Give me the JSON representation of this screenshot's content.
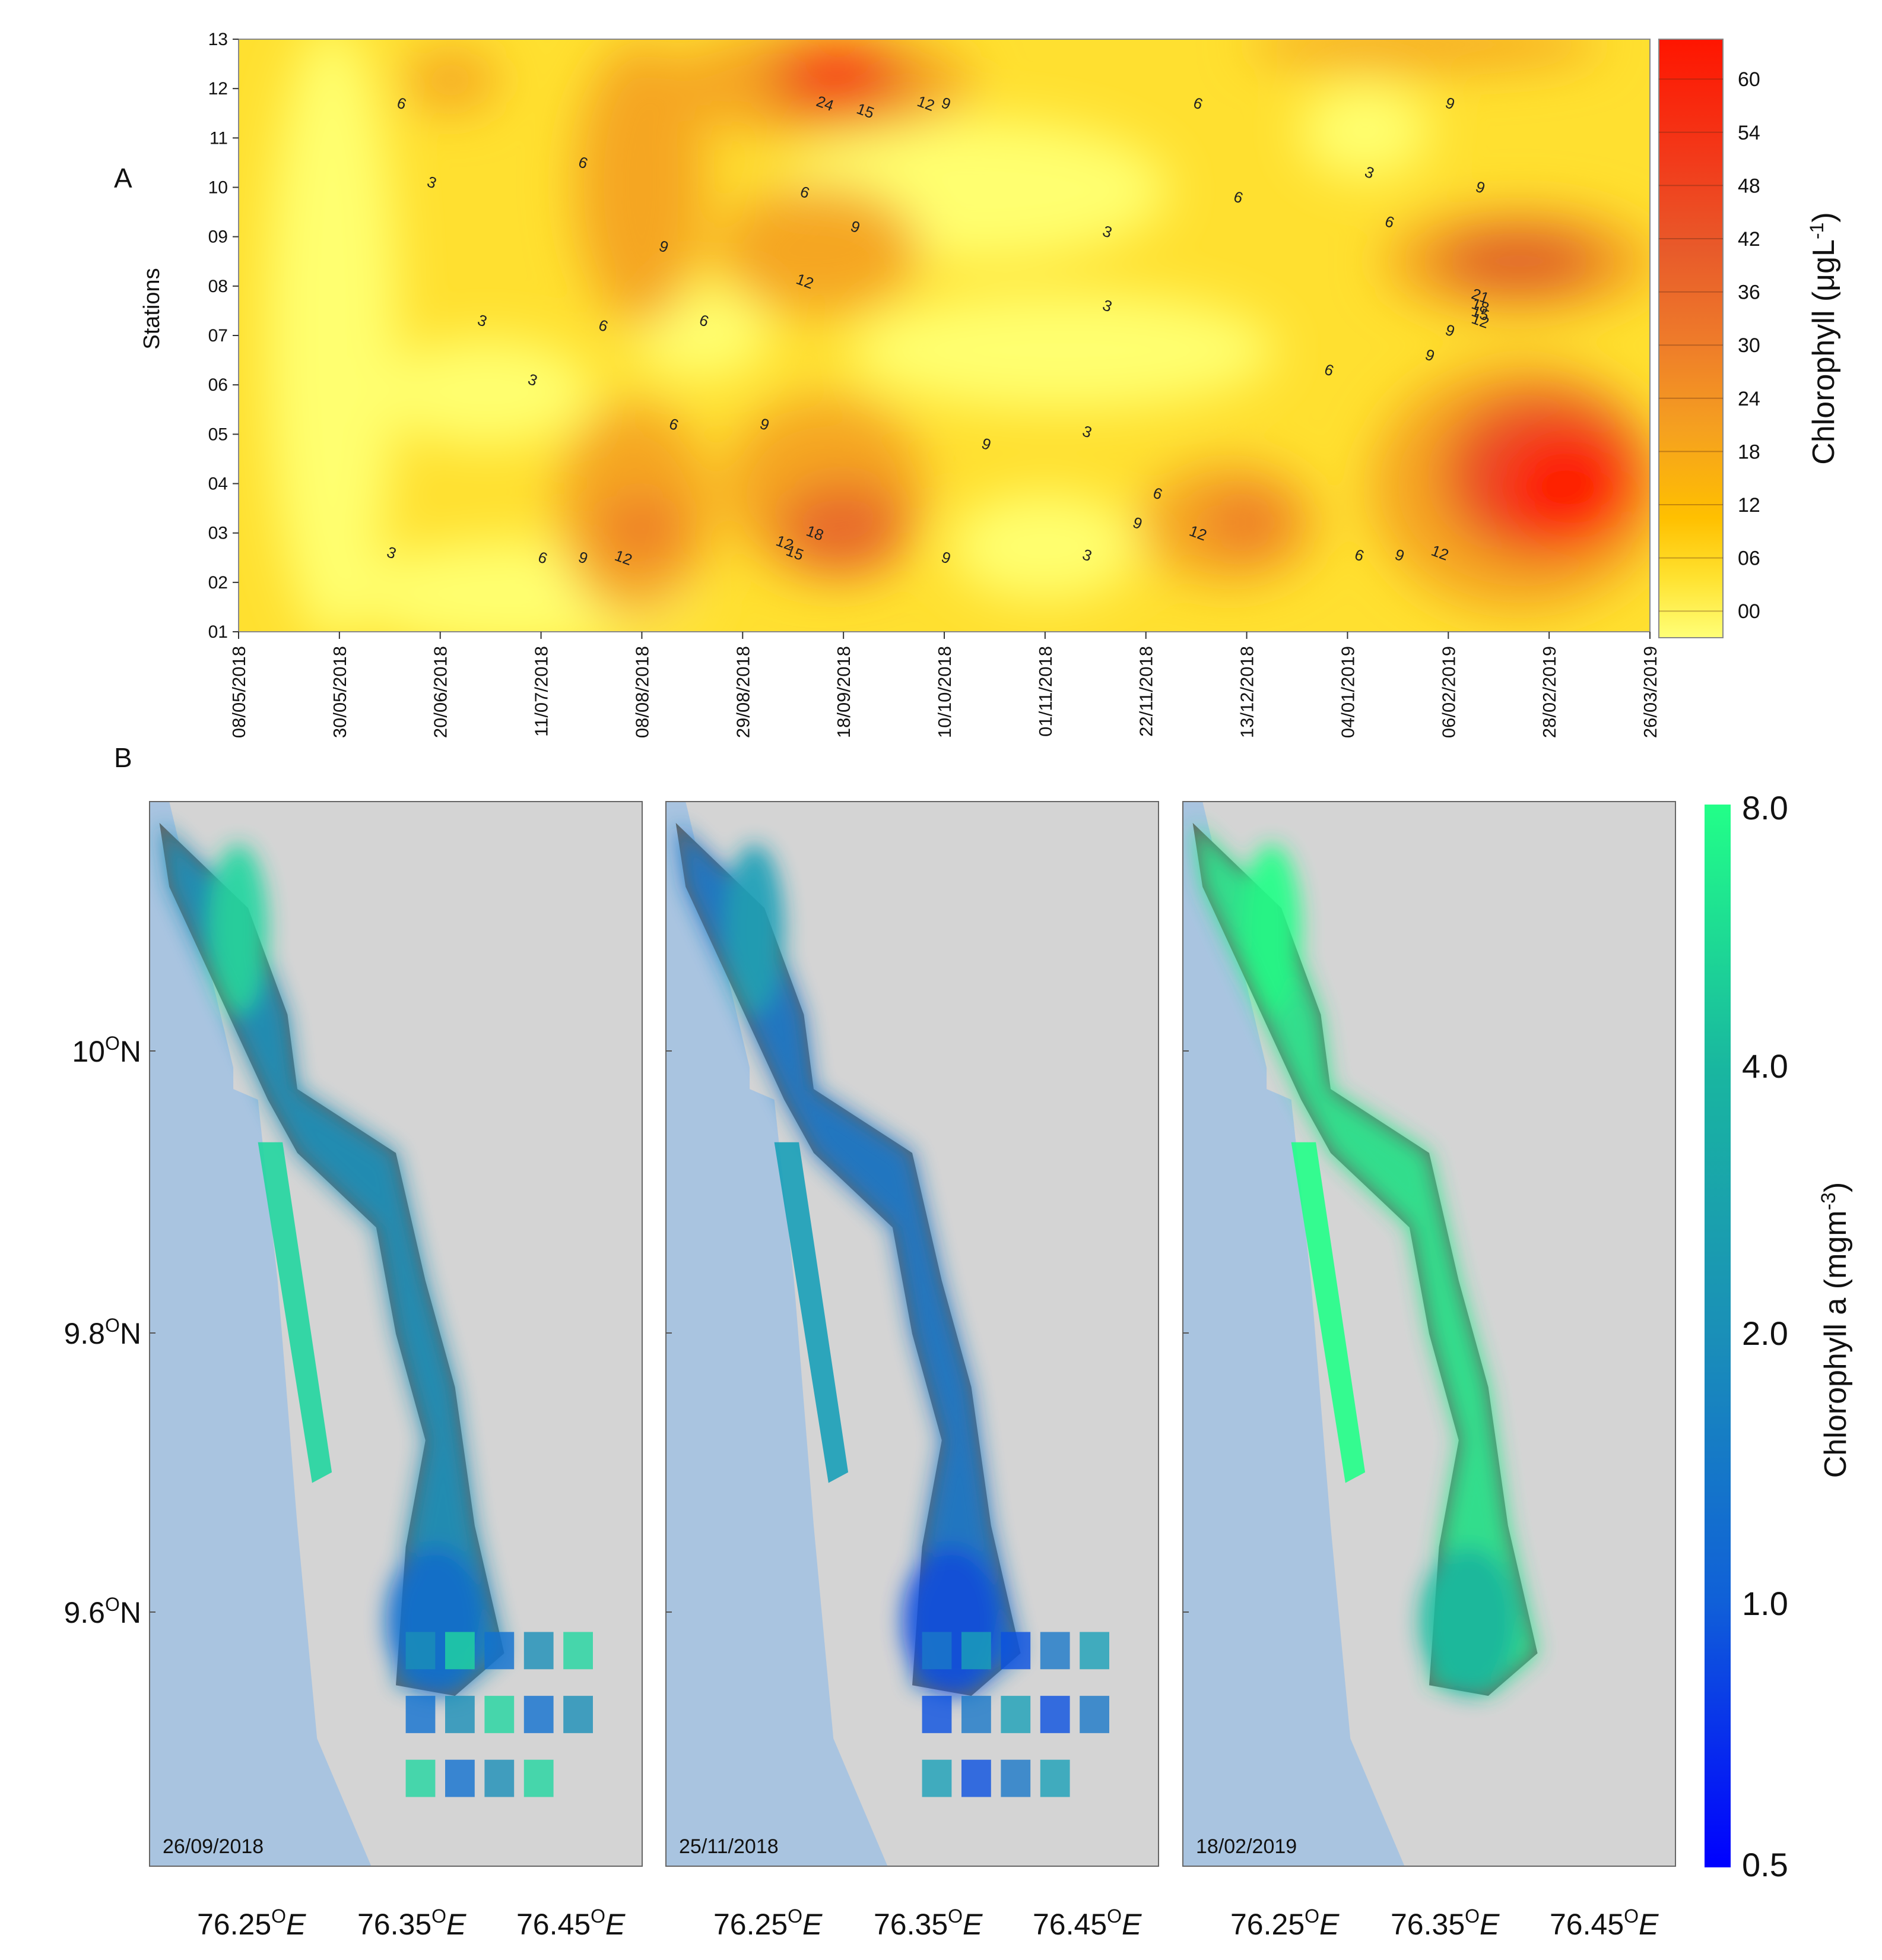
{
  "panel_a": {
    "letter": "A",
    "ylabel": "Stations",
    "colorbar_title": "Chlorophyll (μgL",
    "colorbar_sup": "-1",
    "colorbar_close": ")",
    "colorbar_ticks": [
      "00",
      "06",
      "12",
      "18",
      "24",
      "30",
      "36",
      "42",
      "48",
      "54",
      "60"
    ]
  },
  "panel_b": {
    "letter": "B",
    "colorbar_title": "Chlorophyll a (mgm",
    "colorbar_sup": "-3",
    "colorbar_close": ")",
    "colorbar_ticks": [
      "0.5",
      "1.0",
      "2.0",
      "4.0",
      "8.0"
    ],
    "lat_ticks": [
      "10",
      "9.8",
      "9.6"
    ],
    "lat_suffix": "N",
    "lon_ticks": [
      "76.25",
      "76.35",
      "76.45"
    ],
    "lon_suffix": "E",
    "degree_mark": "O",
    "maps": [
      {
        "date": "26/09/2018"
      },
      {
        "date": "25/11/2018"
      },
      {
        "date": "18/02/2019"
      }
    ]
  },
  "colors": {
    "low": "#ffff66",
    "mid": "#ffd200",
    "orange": "#f5a623",
    "high": "#ff1a00",
    "sea": "#a9c4e0",
    "land": "#d4d4d4",
    "water_gray": "#666666",
    "chl_low": "#0000ff",
    "chl_mid": "#1e88b4",
    "chl_high": "#22ff88"
  },
  "chart_data": {
    "type": "heatmap",
    "title": "",
    "xlabel": "",
    "ylabel": "Stations",
    "x_ticks": [
      "08/05/2018",
      "30/05/2018",
      "20/06/2018",
      "11/07/2018",
      "08/08/2018",
      "29/08/2018",
      "18/09/2018",
      "10/10/2018",
      "01/11/2018",
      "22/11/2018",
      "13/12/2018",
      "04/01/2019",
      "06/02/2019",
      "28/02/2019",
      "26/03/2019"
    ],
    "y_ticks": [
      "01",
      "02",
      "03",
      "04",
      "05",
      "06",
      "07",
      "08",
      "09",
      "10",
      "11",
      "12",
      "13"
    ],
    "colorbar": {
      "label": "Chlorophyll (μgL-1)",
      "range": [
        0,
        60
      ],
      "ticks": [
        0,
        6,
        12,
        18,
        24,
        30,
        36,
        42,
        48,
        54,
        60
      ]
    },
    "hotspots": [
      {
        "x": "18/09/2018",
        "station": 12,
        "value": 60
      },
      {
        "x": "28/02/2019",
        "station": 4,
        "value": 60
      },
      {
        "x": "18/09/2018",
        "station": 3,
        "value": 30
      },
      {
        "x": "06/02/2019",
        "station": 8,
        "value": 27
      },
      {
        "x": "08/08/2018",
        "station": 3,
        "value": 20
      },
      {
        "x": "13/12/2018",
        "station": 3,
        "value": 20
      }
    ],
    "contour_labels": [
      {
        "text": "6",
        "x": 1.6,
        "y": 11.6
      },
      {
        "text": "3",
        "x": 1.9,
        "y": 10.0
      },
      {
        "text": "6",
        "x": 3.4,
        "y": 10.4
      },
      {
        "text": "24",
        "x": 5.8,
        "y": 11.6
      },
      {
        "text": "15",
        "x": 6.2,
        "y": 11.45
      },
      {
        "text": "12",
        "x": 6.8,
        "y": 11.6
      },
      {
        "text": "9",
        "x": 7.0,
        "y": 11.6
      },
      {
        "text": "6",
        "x": 9.5,
        "y": 11.6
      },
      {
        "text": "9",
        "x": 12.0,
        "y": 11.6
      },
      {
        "text": "6",
        "x": 5.6,
        "y": 9.8
      },
      {
        "text": "9",
        "x": 6.1,
        "y": 9.1
      },
      {
        "text": "3",
        "x": 8.6,
        "y": 9.0
      },
      {
        "text": "6",
        "x": 9.9,
        "y": 9.7
      },
      {
        "text": "3",
        "x": 11.2,
        "y": 10.2
      },
      {
        "text": "9",
        "x": 12.3,
        "y": 9.9
      },
      {
        "text": "6",
        "x": 11.4,
        "y": 9.2
      },
      {
        "text": "9",
        "x": 4.2,
        "y": 8.7
      },
      {
        "text": "12",
        "x": 5.6,
        "y": 8.0
      },
      {
        "text": "3",
        "x": 8.6,
        "y": 7.5
      },
      {
        "text": "21",
        "x": 12.3,
        "y": 7.7
      },
      {
        "text": "18",
        "x": 12.3,
        "y": 7.5
      },
      {
        "text": "15",
        "x": 12.3,
        "y": 7.35
      },
      {
        "text": "12",
        "x": 12.3,
        "y": 7.2
      },
      {
        "text": "9",
        "x": 12.0,
        "y": 7.0
      },
      {
        "text": "3",
        "x": 2.4,
        "y": 7.2
      },
      {
        "text": "6",
        "x": 3.6,
        "y": 7.1
      },
      {
        "text": "6",
        "x": 4.6,
        "y": 7.2
      },
      {
        "text": "3",
        "x": 2.9,
        "y": 6.0
      },
      {
        "text": "6",
        "x": 10.8,
        "y": 6.2
      },
      {
        "text": "9",
        "x": 11.8,
        "y": 6.5
      },
      {
        "text": "6",
        "x": 4.3,
        "y": 5.1
      },
      {
        "text": "9",
        "x": 5.2,
        "y": 5.1
      },
      {
        "text": "9",
        "x": 7.4,
        "y": 4.7
      },
      {
        "text": "3",
        "x": 8.4,
        "y": 4.95
      },
      {
        "text": "6",
        "x": 9.1,
        "y": 3.7
      },
      {
        "text": "9",
        "x": 8.9,
        "y": 3.1
      },
      {
        "text": "12",
        "x": 9.5,
        "y": 2.9
      },
      {
        "text": "12",
        "x": 5.4,
        "y": 2.7
      },
      {
        "text": "15",
        "x": 5.5,
        "y": 2.5
      },
      {
        "text": "18",
        "x": 5.7,
        "y": 2.9
      },
      {
        "text": "3",
        "x": 1.5,
        "y": 2.5
      },
      {
        "text": "6",
        "x": 3.0,
        "y": 2.4
      },
      {
        "text": "9",
        "x": 3.4,
        "y": 2.4
      },
      {
        "text": "12",
        "x": 3.8,
        "y": 2.4
      },
      {
        "text": "9",
        "x": 7.0,
        "y": 2.4
      },
      {
        "text": "3",
        "x": 8.4,
        "y": 2.45
      },
      {
        "text": "6",
        "x": 11.1,
        "y": 2.45
      },
      {
        "text": "9",
        "x": 11.5,
        "y": 2.45
      },
      {
        "text": "12",
        "x": 11.9,
        "y": 2.5
      }
    ]
  }
}
